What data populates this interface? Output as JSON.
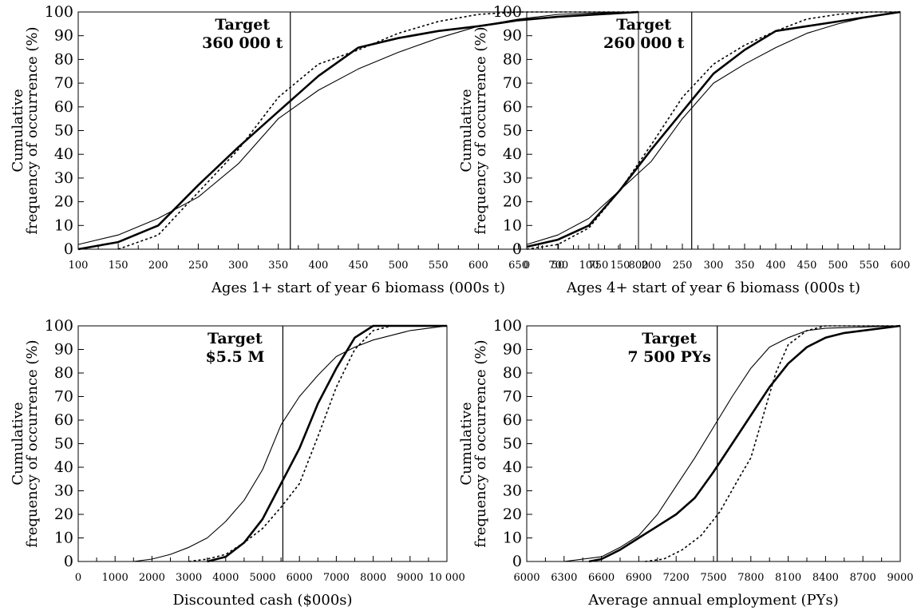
{
  "chart_data": [
    {
      "type": "line",
      "xlabel": "Ages 1+ start of year 6 biomass (000s t)",
      "ylabel_line1": "Cumulative",
      "ylabel_line2": "frequency of occurrence (%)",
      "xlim": [
        100,
        800
      ],
      "ylim": [
        0,
        100
      ],
      "xticks": [
        "100",
        "150",
        "200",
        "250",
        "300",
        "350",
        "400",
        "450",
        "500",
        "550",
        "600",
        "650",
        "700",
        "750",
        "800"
      ],
      "yticks": [
        "0",
        "10",
        "20",
        "30",
        "40",
        "50",
        "60",
        "70",
        "80",
        "90",
        "100"
      ],
      "target_x": 365,
      "annotation_line1": "Target",
      "annotation_line2": "360 000 t",
      "series": [
        {
          "style": "thin",
          "points": [
            [
              100,
              2
            ],
            [
              150,
              6
            ],
            [
              200,
              13
            ],
            [
              250,
              22
            ],
            [
              300,
              36
            ],
            [
              350,
              55
            ],
            [
              400,
              67
            ],
            [
              450,
              76
            ],
            [
              500,
              83
            ],
            [
              550,
              89
            ],
            [
              600,
              94
            ],
            [
              650,
              97
            ],
            [
              700,
              99
            ],
            [
              750,
              99.6
            ],
            [
              800,
              100
            ]
          ]
        },
        {
          "style": "thick",
          "points": [
            [
              100,
              0
            ],
            [
              150,
              3
            ],
            [
              200,
              10
            ],
            [
              250,
              27
            ],
            [
              300,
              43
            ],
            [
              350,
              58
            ],
            [
              400,
              73
            ],
            [
              450,
              85
            ],
            [
              500,
              89
            ],
            [
              550,
              92
            ],
            [
              600,
              94
            ],
            [
              650,
              96.5
            ],
            [
              700,
              98
            ],
            [
              750,
              99
            ],
            [
              800,
              100
            ]
          ]
        },
        {
          "style": "dotted",
          "points": [
            [
              150,
              0
            ],
            [
              200,
              6
            ],
            [
              250,
              24
            ],
            [
              300,
              42
            ],
            [
              350,
              64
            ],
            [
              400,
              78
            ],
            [
              450,
              84
            ],
            [
              500,
              91
            ],
            [
              550,
              96
            ],
            [
              600,
              99
            ],
            [
              650,
              100
            ],
            [
              700,
              100
            ],
            [
              800,
              100
            ]
          ]
        }
      ]
    },
    {
      "type": "line",
      "xlabel": "Ages 4+ start of year 6 biomass (000s t)",
      "ylabel_line1": "Cumulative",
      "ylabel_line2": "frequency of occurrence (%)",
      "xlim": [
        0,
        600
      ],
      "ylim": [
        0,
        100
      ],
      "xticks": [
        "0",
        "50",
        "100",
        "150",
        "200",
        "250",
        "300",
        "350",
        "400",
        "450",
        "500",
        "550",
        "600"
      ],
      "yticks": [
        "0",
        "10",
        "20",
        "30",
        "40",
        "50",
        "60",
        "70",
        "80",
        "90",
        "100"
      ],
      "target_x": 265,
      "annotation_line1": "Target",
      "annotation_line2": "260 000 t",
      "series": [
        {
          "style": "thin",
          "points": [
            [
              0,
              2
            ],
            [
              50,
              6
            ],
            [
              100,
              13
            ],
            [
              150,
              25
            ],
            [
              200,
              37
            ],
            [
              250,
              55
            ],
            [
              300,
              70
            ],
            [
              350,
              78
            ],
            [
              400,
              85
            ],
            [
              450,
              91
            ],
            [
              500,
              95
            ],
            [
              550,
              98
            ],
            [
              600,
              100
            ]
          ]
        },
        {
          "style": "thick",
          "points": [
            [
              0,
              1
            ],
            [
              50,
              4
            ],
            [
              100,
              10
            ],
            [
              150,
              25
            ],
            [
              200,
              42
            ],
            [
              250,
              58
            ],
            [
              300,
              74
            ],
            [
              350,
              84
            ],
            [
              400,
              92
            ],
            [
              450,
              94
            ],
            [
              500,
              96
            ],
            [
              550,
              98
            ],
            [
              600,
              100
            ]
          ]
        },
        {
          "style": "dotted",
          "points": [
            [
              0,
              0
            ],
            [
              50,
              2
            ],
            [
              100,
              9
            ],
            [
              150,
              25
            ],
            [
              200,
              44
            ],
            [
              250,
              64
            ],
            [
              300,
              78
            ],
            [
              350,
              86
            ],
            [
              400,
              92
            ],
            [
              450,
              97
            ],
            [
              500,
              99
            ],
            [
              550,
              100
            ],
            [
              600,
              100
            ]
          ]
        }
      ]
    },
    {
      "type": "line",
      "xlabel": "Discounted cash ($000s)",
      "ylabel_line1": "Cumulative",
      "ylabel_line2": "frequency of occurrence (%)",
      "xlim": [
        0,
        10000
      ],
      "ylim": [
        0,
        100
      ],
      "xticks": [
        "0",
        "1000",
        "2000",
        "3000",
        "4000",
        "5000",
        "6000",
        "7000",
        "8000",
        "9000",
        "10 000"
      ],
      "yticks": [
        "0",
        "10",
        "20",
        "30",
        "40",
        "50",
        "60",
        "70",
        "80",
        "90",
        "100"
      ],
      "target_x": 5550,
      "annotation_line1": "Target",
      "annotation_line2": "$5.5 M",
      "series": [
        {
          "style": "thin",
          "points": [
            [
              1500,
              0
            ],
            [
              2000,
              1
            ],
            [
              2500,
              3
            ],
            [
              3000,
              6
            ],
            [
              3500,
              10
            ],
            [
              4000,
              17
            ],
            [
              4500,
              26
            ],
            [
              5000,
              39
            ],
            [
              5500,
              58
            ],
            [
              6000,
              70
            ],
            [
              6500,
              79
            ],
            [
              7000,
              87
            ],
            [
              7500,
              91
            ],
            [
              8000,
              94
            ],
            [
              8500,
              96
            ],
            [
              9000,
              98
            ],
            [
              9500,
              99
            ],
            [
              10000,
              100
            ]
          ]
        },
        {
          "style": "thick",
          "points": [
            [
              3500,
              0
            ],
            [
              4000,
              2
            ],
            [
              4500,
              8
            ],
            [
              5000,
              18
            ],
            [
              5500,
              33
            ],
            [
              6000,
              48
            ],
            [
              6500,
              67
            ],
            [
              7000,
              82
            ],
            [
              7500,
              95
            ],
            [
              8000,
              100
            ],
            [
              10000,
              100
            ]
          ]
        },
        {
          "style": "dotted",
          "points": [
            [
              3000,
              0
            ],
            [
              3500,
              1
            ],
            [
              4000,
              3
            ],
            [
              4500,
              8
            ],
            [
              5000,
              14
            ],
            [
              5500,
              23
            ],
            [
              6000,
              33
            ],
            [
              6500,
              53
            ],
            [
              7000,
              74
            ],
            [
              7500,
              90
            ],
            [
              8000,
              98
            ],
            [
              8500,
              100
            ],
            [
              10000,
              100
            ]
          ]
        }
      ]
    },
    {
      "type": "line",
      "xlabel": "Average annual employment (PYs)",
      "ylabel_line1": "Cumulative",
      "ylabel_line2": "frequency of occurrence (%)",
      "xlim": [
        6000,
        9000
      ],
      "ylim": [
        0,
        100
      ],
      "xticks": [
        "6000",
        "6300",
        "6600",
        "6900",
        "7200",
        "7500",
        "7800",
        "8100",
        "8400",
        "8700",
        "9000"
      ],
      "yticks": [
        "0",
        "10",
        "20",
        "30",
        "40",
        "50",
        "60",
        "70",
        "80",
        "90",
        "100"
      ],
      "target_x": 7530,
      "annotation_line1": "Target",
      "annotation_line2": "7 500 PYs",
      "series": [
        {
          "style": "thin",
          "points": [
            [
              6300,
              0
            ],
            [
              6600,
              2
            ],
            [
              6750,
              6
            ],
            [
              6900,
              11
            ],
            [
              7050,
              20
            ],
            [
              7200,
              32
            ],
            [
              7350,
              44
            ],
            [
              7500,
              57
            ],
            [
              7650,
              70
            ],
            [
              7800,
              82
            ],
            [
              7950,
              91
            ],
            [
              8100,
              95
            ],
            [
              8250,
              98
            ],
            [
              8400,
              99
            ],
            [
              9000,
              100
            ]
          ]
        },
        {
          "style": "thick",
          "points": [
            [
              6500,
              0
            ],
            [
              6600,
              1
            ],
            [
              6750,
              5
            ],
            [
              6900,
              10
            ],
            [
              7050,
              15
            ],
            [
              7200,
              20
            ],
            [
              7350,
              27
            ],
            [
              7500,
              38
            ],
            [
              7650,
              50
            ],
            [
              7800,
              62
            ],
            [
              7950,
              74
            ],
            [
              8100,
              84
            ],
            [
              8250,
              91
            ],
            [
              8400,
              95
            ],
            [
              8550,
              97
            ],
            [
              8700,
              98
            ],
            [
              9000,
              100
            ]
          ]
        },
        {
          "style": "dotted",
          "points": [
            [
              6950,
              0
            ],
            [
              7100,
              1
            ],
            [
              7250,
              5
            ],
            [
              7400,
              11
            ],
            [
              7550,
              21
            ],
            [
              7700,
              35
            ],
            [
              7800,
              44
            ],
            [
              7900,
              62
            ],
            [
              8000,
              80
            ],
            [
              8100,
              92
            ],
            [
              8250,
              98
            ],
            [
              8400,
              100
            ],
            [
              9000,
              100
            ]
          ]
        }
      ]
    }
  ]
}
